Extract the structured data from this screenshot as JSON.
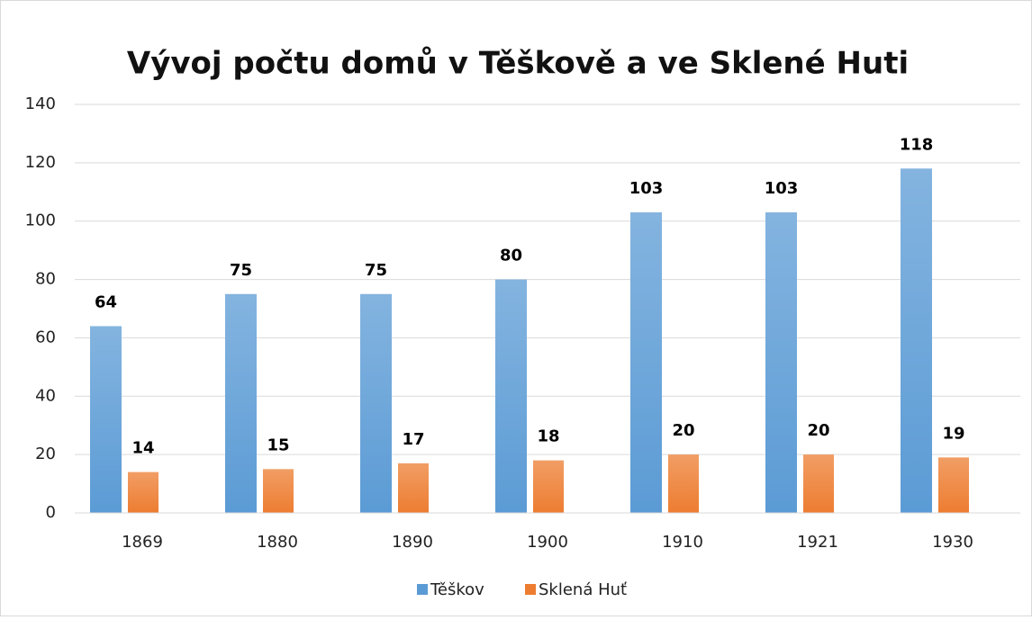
{
  "chart_data": {
    "type": "bar",
    "title": "Vývoj počtu domů v Těškově a ve Sklené Huti",
    "categories": [
      "1869",
      "1880",
      "1890",
      "1900",
      "1910",
      "1921",
      "1930"
    ],
    "series": [
      {
        "name": "Těškov",
        "color": "#5b9bd5",
        "values": [
          64,
          75,
          75,
          80,
          103,
          103,
          118
        ]
      },
      {
        "name": "Sklená Huť",
        "color": "#ed7d31",
        "values": [
          14,
          15,
          17,
          18,
          20,
          20,
          19
        ]
      }
    ],
    "ylim": [
      0,
      140
    ],
    "yticks": [
      0,
      20,
      40,
      60,
      80,
      100,
      120,
      140
    ],
    "grid": true,
    "legend": "bottom"
  }
}
